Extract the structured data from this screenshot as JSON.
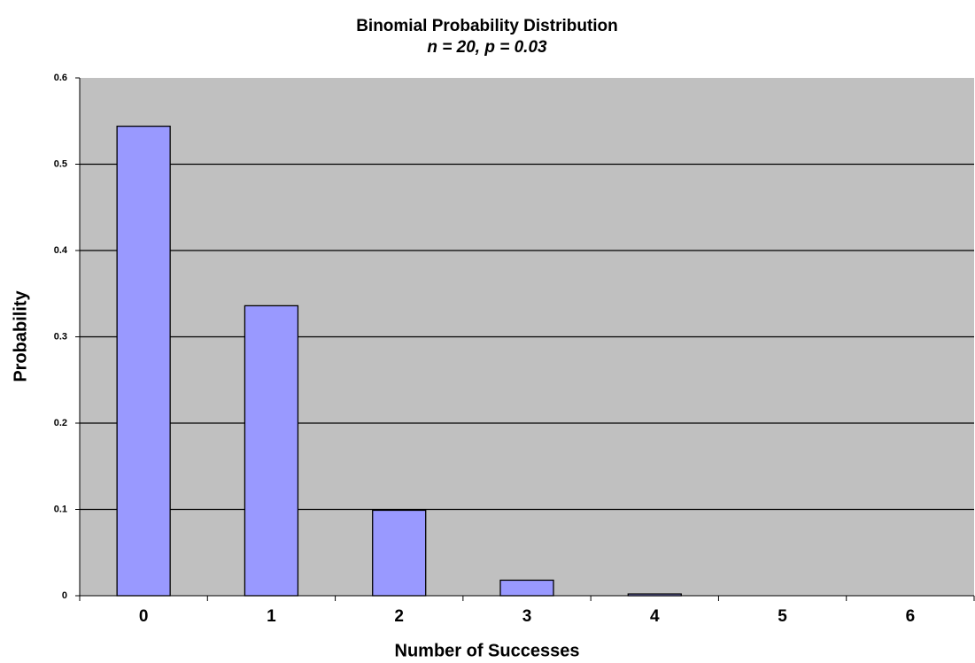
{
  "chart_data": {
    "type": "bar",
    "title": "Binomial Probability Distribution",
    "subtitle": "n = 20, p = 0.03",
    "x_label": "Number of Successes",
    "y_label": "Probability",
    "categories": [
      "0",
      "1",
      "2",
      "3",
      "4",
      "5",
      "6"
    ],
    "values": [
      0.544,
      0.336,
      0.099,
      0.018,
      0.002,
      0,
      0
    ],
    "color": "#9999ff",
    "ylim": [
      0,
      0.6
    ],
    "yticks": [
      0,
      0.1,
      0.2,
      0.3,
      0.4,
      0.5,
      0.6
    ],
    "grid": true
  }
}
